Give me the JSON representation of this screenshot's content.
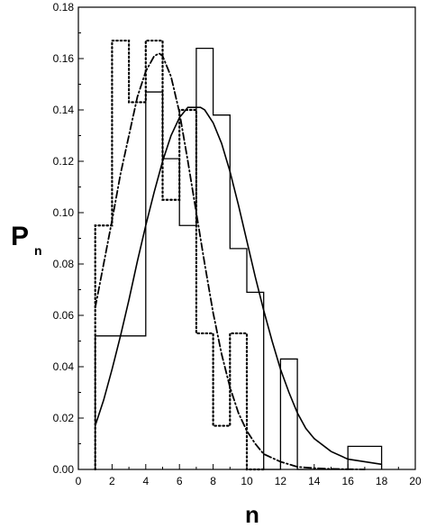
{
  "chart_data": {
    "type": "line",
    "title": "",
    "xlabel": "n",
    "ylabel": "P",
    "ylabel_subscript": "n",
    "xlim": [
      0,
      20
    ],
    "ylim": [
      0,
      0.18
    ],
    "x_ticks": [
      0,
      2,
      4,
      6,
      8,
      10,
      12,
      14,
      16,
      18,
      20
    ],
    "y_ticks": [
      0.0,
      0.02,
      0.04,
      0.06,
      0.08,
      0.1,
      0.12,
      0.14,
      0.16,
      0.18
    ],
    "grid": false,
    "legend": "none",
    "series": [
      {
        "style": "solid-histogram",
        "bins": [
          {
            "x0": 1,
            "x1": 4,
            "y": 0.052
          },
          {
            "x0": 4,
            "x1": 5,
            "y": 0.147
          },
          {
            "x0": 5,
            "x1": 6,
            "y": 0.121
          },
          {
            "x0": 6,
            "x1": 7,
            "y": 0.095
          },
          {
            "x0": 7,
            "x1": 8,
            "y": 0.164
          },
          {
            "x0": 8,
            "x1": 9,
            "y": 0.138
          },
          {
            "x0": 9,
            "x1": 10,
            "y": 0.086
          },
          {
            "x0": 10,
            "x1": 11,
            "y": 0.069
          },
          {
            "x0": 11,
            "x1": 12,
            "y": 0.0
          },
          {
            "x0": 12,
            "x1": 13,
            "y": 0.043
          },
          {
            "x0": 13,
            "x1": 16,
            "y": 0.0
          },
          {
            "x0": 16,
            "x1": 18,
            "y": 0.009
          }
        ]
      },
      {
        "style": "dotted-histogram",
        "bins": [
          {
            "x0": 1,
            "x1": 2,
            "y": 0.095
          },
          {
            "x0": 2,
            "x1": 3,
            "y": 0.167
          },
          {
            "x0": 3,
            "x1": 4,
            "y": 0.143
          },
          {
            "x0": 4,
            "x1": 5,
            "y": 0.167
          },
          {
            "x0": 5,
            "x1": 6,
            "y": 0.105
          },
          {
            "x0": 6,
            "x1": 7,
            "y": 0.14
          },
          {
            "x0": 7,
            "x1": 8,
            "y": 0.053
          },
          {
            "x0": 8,
            "x1": 9,
            "y": 0.017
          },
          {
            "x0": 9,
            "x1": 10,
            "y": 0.053
          },
          {
            "x0": 10,
            "x1": 11,
            "y": 0.0
          }
        ]
      },
      {
        "style": "solid-curve",
        "x": [
          1,
          1.5,
          2,
          2.5,
          3,
          3.5,
          4,
          4.5,
          5,
          5.5,
          6,
          6.5,
          7,
          7.25,
          7.5,
          8,
          8.5,
          9,
          9.5,
          10,
          10.5,
          11,
          11.5,
          12,
          12.5,
          13,
          13.5,
          14,
          15,
          16,
          17,
          18
        ],
        "y": [
          0.017,
          0.027,
          0.039,
          0.052,
          0.066,
          0.081,
          0.095,
          0.108,
          0.12,
          0.13,
          0.137,
          0.141,
          0.141,
          0.141,
          0.14,
          0.135,
          0.127,
          0.116,
          0.103,
          0.089,
          0.075,
          0.062,
          0.05,
          0.039,
          0.03,
          0.022,
          0.016,
          0.012,
          0.007,
          0.004,
          0.003,
          0.002
        ]
      },
      {
        "style": "dash-dot-curve",
        "x": [
          1,
          1.5,
          2,
          2.5,
          3,
          3.5,
          4,
          4.5,
          4.8,
          5,
          5.5,
          6,
          6.5,
          7,
          7.5,
          8,
          8.5,
          9,
          9.5,
          10,
          10.5,
          11,
          12,
          13,
          14,
          15,
          16,
          17
        ],
        "y": [
          0.063,
          0.08,
          0.097,
          0.115,
          0.13,
          0.145,
          0.155,
          0.161,
          0.162,
          0.161,
          0.153,
          0.139,
          0.12,
          0.1,
          0.08,
          0.061,
          0.045,
          0.032,
          0.022,
          0.015,
          0.01,
          0.006,
          0.003,
          0.001,
          0.0005,
          0.0002,
          0.0001,
          0.0
        ]
      }
    ]
  }
}
